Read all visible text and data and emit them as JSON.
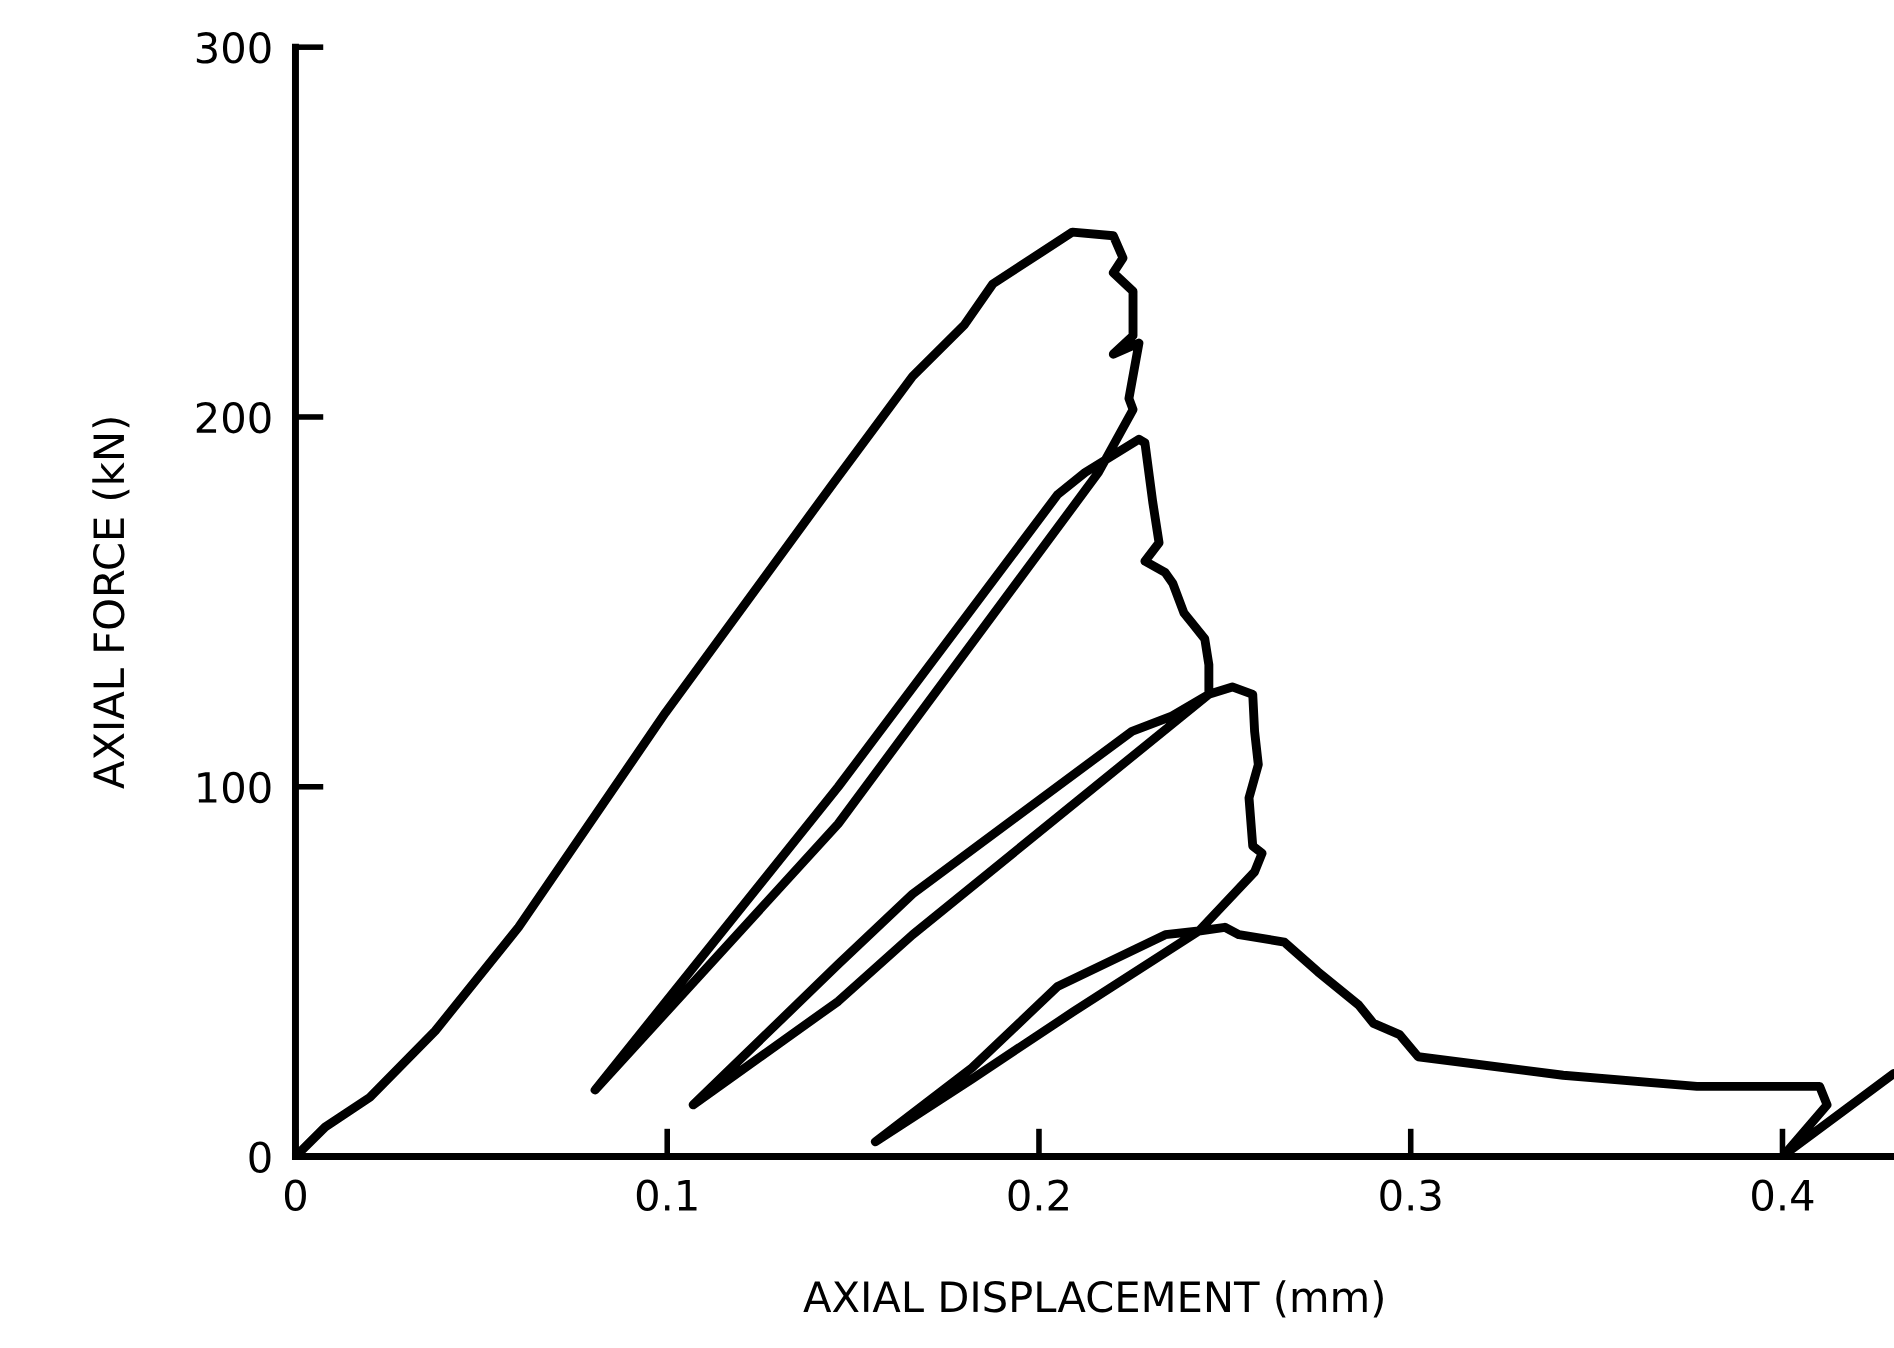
{
  "chart_data": {
    "type": "line",
    "xlabel": "AXIAL DISPLACEMENT (mm)",
    "ylabel": "AXIAL FORCE (kN)",
    "xlim": [
      0,
      0.43
    ],
    "ylim": [
      0,
      300
    ],
    "xticks": [
      0,
      0.1,
      0.2,
      0.3,
      0.4
    ],
    "yticks": [
      0,
      100,
      200,
      300
    ],
    "marker": "none",
    "line_style": "solid",
    "series": [
      {
        "color": "#000000",
        "x": [
          0,
          0.008,
          0.02,
          0.0376,
          0.06,
          0.0995,
          0.1446,
          0.166,
          0.18,
          0.1876,
          0.209,
          0.22,
          0.2226,
          0.22,
          0.2253,
          0.2253,
          0.22,
          0.2269,
          0.2242,
          0.2253,
          0.216,
          0.146,
          0.0806,
          0.146,
          0.205,
          0.2124,
          0.2269,
          0.2285,
          0.2306,
          0.2323,
          0.2285,
          0.2339,
          0.236,
          0.239,
          0.2414,
          0.2446,
          0.2457,
          0.2457,
          0.166,
          0.146,
          0.107,
          0.146,
          0.166,
          0.225,
          0.2355,
          0.2457,
          0.252,
          0.2575,
          0.258,
          0.259,
          0.2565,
          0.2575,
          0.26,
          0.258,
          0.243,
          0.209,
          0.182,
          0.156,
          0.182,
          0.205,
          0.234,
          0.243,
          0.25,
          0.2538,
          0.266,
          0.275,
          0.286,
          0.29,
          0.297,
          0.302,
          0.341,
          0.377,
          0.41,
          0.412,
          0.4005,
          0.43
        ],
        "values": [
          0,
          8,
          16,
          34,
          62,
          120,
          182,
          211,
          225,
          236,
          250,
          249,
          243,
          239,
          234,
          222,
          217,
          220,
          205,
          202,
          185,
          90,
          18,
          100,
          179,
          185,
          194,
          193,
          177,
          166,
          161,
          158,
          155,
          147,
          144,
          140,
          133,
          125,
          60,
          42,
          14,
          52,
          71,
          115,
          119,
          125,
          127,
          125,
          115,
          106,
          97,
          84,
          82,
          77,
          61,
          39,
          21,
          4,
          24,
          46,
          60,
          61,
          62,
          60,
          58,
          50,
          41,
          36,
          33,
          27,
          22,
          19,
          19,
          14,
          0.5,
          22.5
        ]
      }
    ]
  }
}
